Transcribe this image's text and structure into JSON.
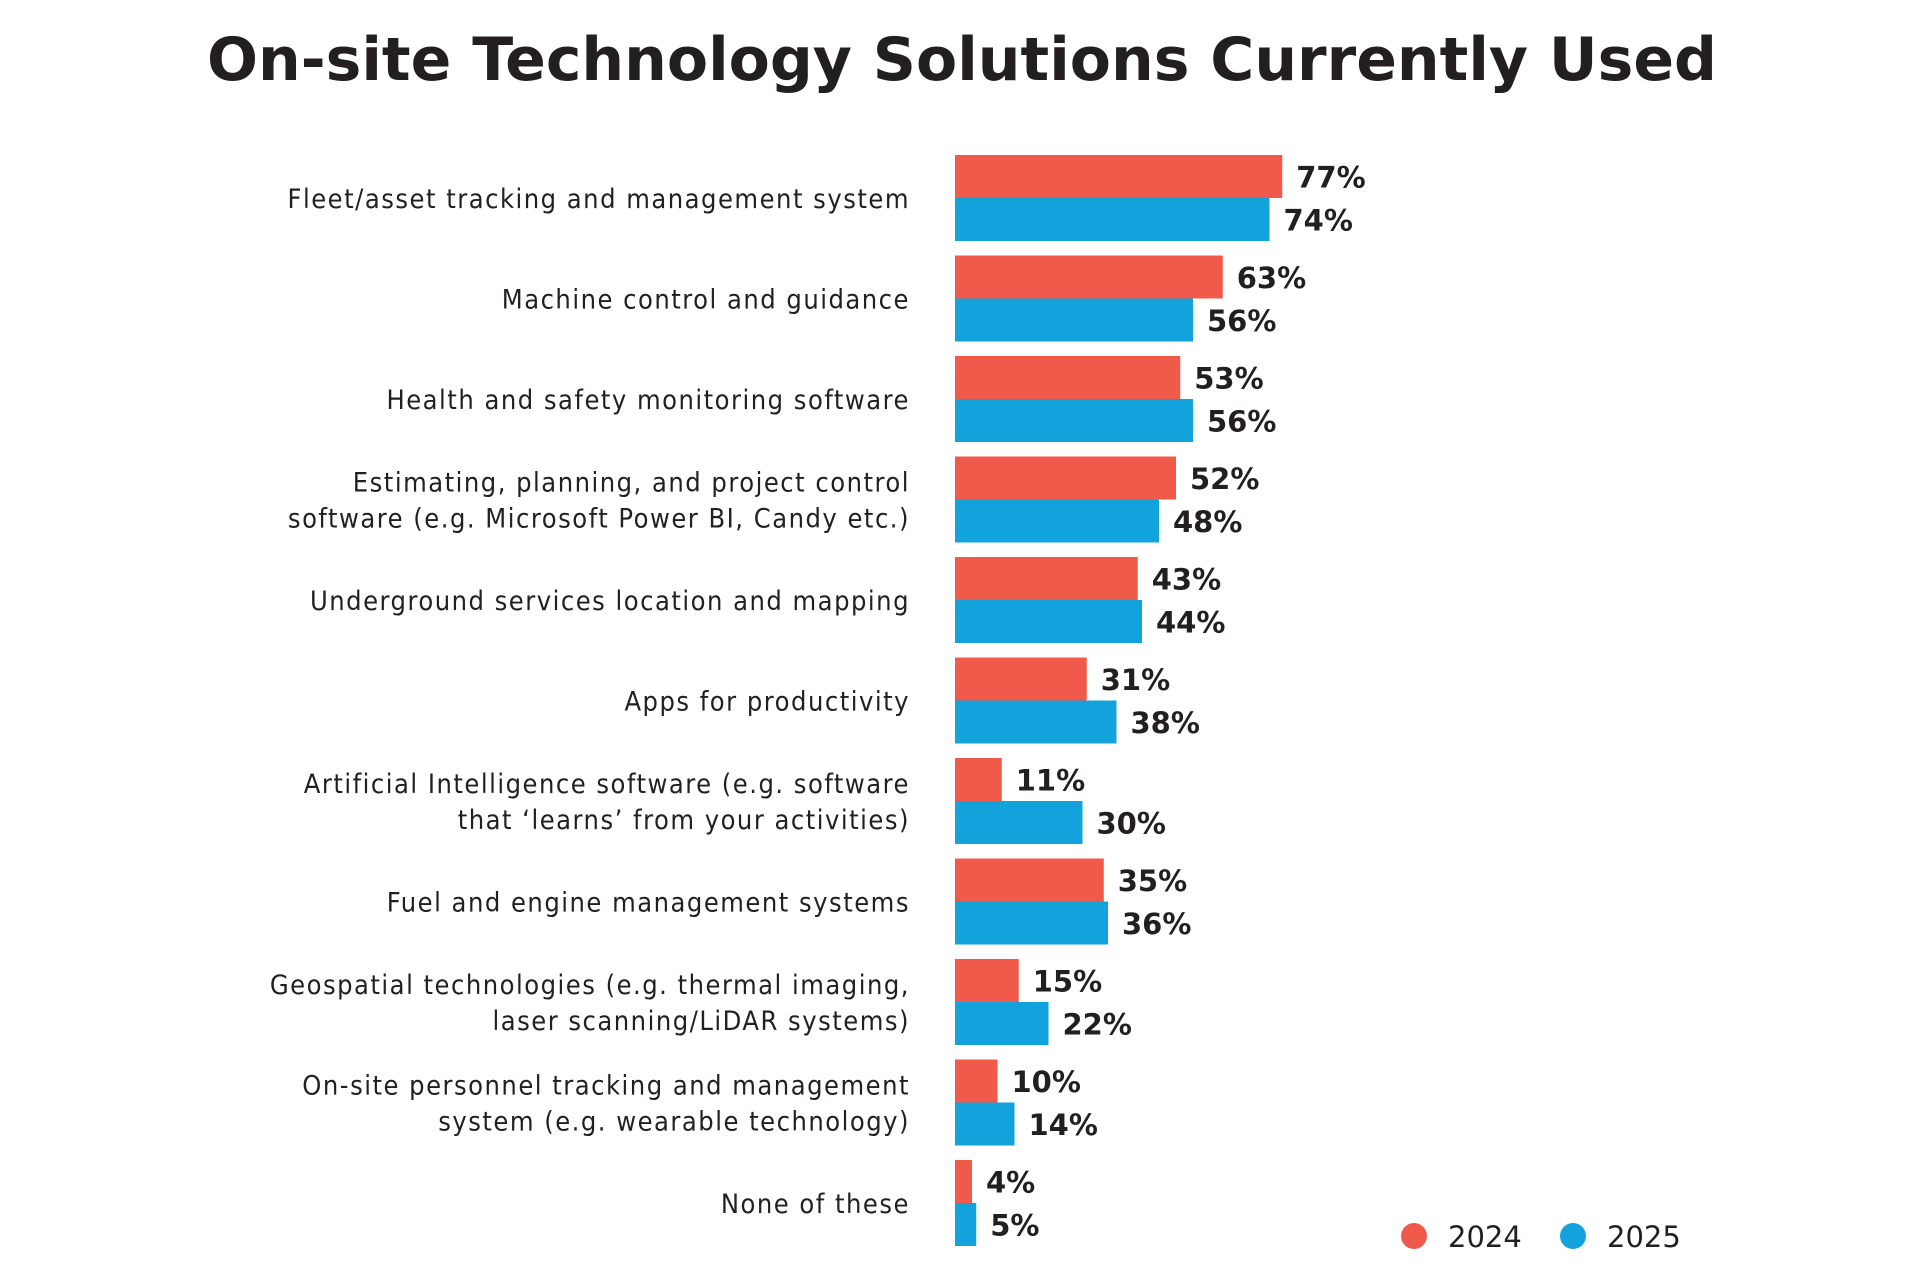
{
  "chart_data": {
    "type": "bar",
    "orientation": "horizontal",
    "title": "On-site Technology Solutions Currently Used",
    "categories": [
      [
        "Fleet/asset tracking and management system"
      ],
      [
        "Machine control and guidance"
      ],
      [
        "Health and safety monitoring software"
      ],
      [
        "Estimating, planning, and project control",
        "software (e.g. Microsoft Power BI, Candy etc.)"
      ],
      [
        "Underground services location and mapping"
      ],
      [
        "Apps for productivity"
      ],
      [
        "Artificial Intelligence software (e.g. software",
        "that ‘learns’ from your activities)"
      ],
      [
        "Fuel and engine management systems"
      ],
      [
        "Geospatial technologies (e.g. thermal imaging,",
        "laser scanning/LiDAR systems)"
      ],
      [
        "On-site personnel tracking and management",
        "system (e.g. wearable technology)"
      ],
      [
        "None of these"
      ]
    ],
    "series": [
      {
        "name": "2024",
        "color": "#f05a4a",
        "values": [
          77,
          63,
          53,
          52,
          43,
          31,
          11,
          35,
          15,
          10,
          4
        ],
        "labels": [
          "77%",
          "63%",
          "53%",
          "52%",
          "43%",
          "31%",
          "11%",
          "35%",
          "15%",
          "10%",
          "4%"
        ]
      },
      {
        "name": "2025",
        "color": "#12a3dc",
        "values": [
          74,
          56,
          56,
          48,
          44,
          38,
          30,
          36,
          22,
          14,
          5
        ],
        "labels": [
          "74%",
          "56%",
          "56%",
          "48%",
          "44%",
          "38%",
          "30%",
          "36%",
          "22%",
          "14%",
          "5%"
        ]
      }
    ],
    "legend_position": "bottom-right",
    "grid": false,
    "xlim": [
      0,
      100
    ]
  }
}
